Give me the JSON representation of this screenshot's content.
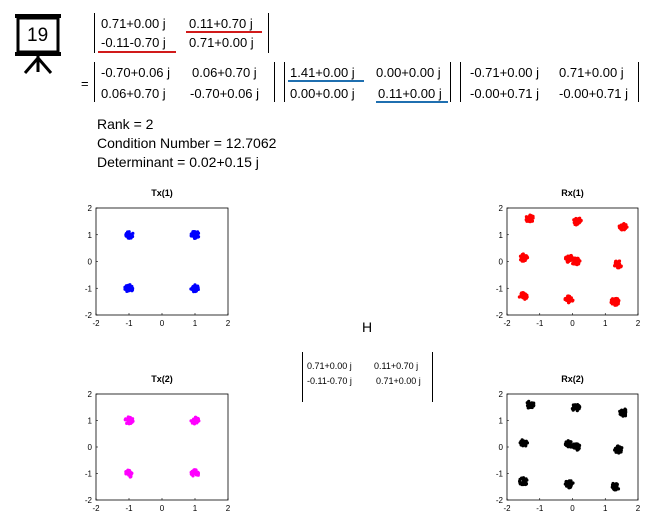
{
  "badge": {
    "number": "19",
    "icon": "presentation-board-icon"
  },
  "matrices": {
    "h_top": [
      [
        "0.71+0.00 j",
        "0.11+0.70 j"
      ],
      [
        "-0.11-0.70 j",
        "0.71+0.00 j"
      ]
    ],
    "equals": "=",
    "u": [
      [
        "-0.70+0.06 j",
        "0.06+0.70 j"
      ],
      [
        "0.06+0.70 j",
        "-0.70+0.06 j"
      ]
    ],
    "s": [
      [
        "1.41+0.00 j",
        "0.00+0.00 j"
      ],
      [
        "0.00+0.00 j",
        "0.11+0.00 j"
      ]
    ],
    "v": [
      [
        "-0.71+0.00 j",
        "0.71+0.00 j"
      ],
      [
        "-0.00+0.71 j",
        "-0.00+0.71 j"
      ]
    ],
    "h_center": [
      [
        "0.71+0.00 j",
        "0.11+0.70 j"
      ],
      [
        "-0.11-0.70 j",
        "0.71+0.00 j"
      ]
    ]
  },
  "stats": {
    "rank": "Rank = 2",
    "condition": "Condition Number = 12.7062",
    "determinant": "Determinant = 0.02+0.15 j"
  },
  "channel_label": "H",
  "colors": {
    "tx1": "#0000ff",
    "tx2": "#ff00ff",
    "rx1": "#ff0000",
    "rx2": "#000000",
    "underline_red": "#d11a1a",
    "underline_blue": "#1f6fb0"
  },
  "chart_data": [
    {
      "type": "scatter",
      "title": "Tx(1)",
      "xlim": [
        -2,
        2
      ],
      "ylim": [
        -2,
        2
      ],
      "xticks": [
        "-2",
        "-1",
        "0",
        "1",
        "2"
      ],
      "yticks": [
        "2",
        "1",
        "0",
        "-1",
        "-2"
      ],
      "series": [
        {
          "color": "#0000ff",
          "clusters": [
            [
              -1,
              1
            ],
            [
              1,
              1
            ],
            [
              -1,
              -1
            ],
            [
              1,
              -1
            ]
          ]
        }
      ]
    },
    {
      "type": "scatter",
      "title": "Rx(1)",
      "xlim": [
        -2,
        2
      ],
      "ylim": [
        -2,
        2
      ],
      "xticks": [
        "-2",
        "-1",
        "0",
        "1",
        "2"
      ],
      "yticks": [
        "2",
        "1",
        "0",
        "-1",
        "-2"
      ],
      "series": [
        {
          "color": "#ff0000",
          "clusters": [
            [
              -1.3,
              1.6
            ],
            [
              0.15,
              1.5
            ],
            [
              1.55,
              1.3
            ],
            [
              -1.5,
              0.15
            ],
            [
              -0.1,
              0.1
            ],
            [
              0.1,
              0.0
            ],
            [
              1.4,
              -0.1
            ],
            [
              -1.5,
              -1.3
            ],
            [
              -0.1,
              -1.4
            ],
            [
              1.3,
              -1.5
            ]
          ]
        }
      ]
    },
    {
      "type": "scatter",
      "title": "Tx(2)",
      "xlim": [
        -2,
        2
      ],
      "ylim": [
        -2,
        2
      ],
      "xticks": [
        "-2",
        "-1",
        "0",
        "1",
        "2"
      ],
      "yticks": [
        "2",
        "1",
        "0",
        "-1",
        "-2"
      ],
      "series": [
        {
          "color": "#ff00ff",
          "clusters": [
            [
              -1,
              1
            ],
            [
              1,
              1
            ],
            [
              -1,
              -1
            ],
            [
              1,
              -1
            ]
          ]
        }
      ]
    },
    {
      "type": "scatter",
      "title": "Rx(2)",
      "xlim": [
        -2,
        2
      ],
      "ylim": [
        -2,
        2
      ],
      "xticks": [
        "-2",
        "-1",
        "0",
        "1",
        "2"
      ],
      "yticks": [
        "2",
        "1",
        "0",
        "-1",
        "-2"
      ],
      "series": [
        {
          "color": "#000000",
          "clusters": [
            [
              -1.3,
              1.6
            ],
            [
              0.1,
              1.5
            ],
            [
              1.55,
              1.3
            ],
            [
              -1.5,
              0.15
            ],
            [
              -0.1,
              0.1
            ],
            [
              0.1,
              0.0
            ],
            [
              1.4,
              -0.1
            ],
            [
              -1.5,
              -1.3
            ],
            [
              -0.1,
              -1.4
            ],
            [
              1.3,
              -1.5
            ]
          ]
        }
      ]
    }
  ]
}
